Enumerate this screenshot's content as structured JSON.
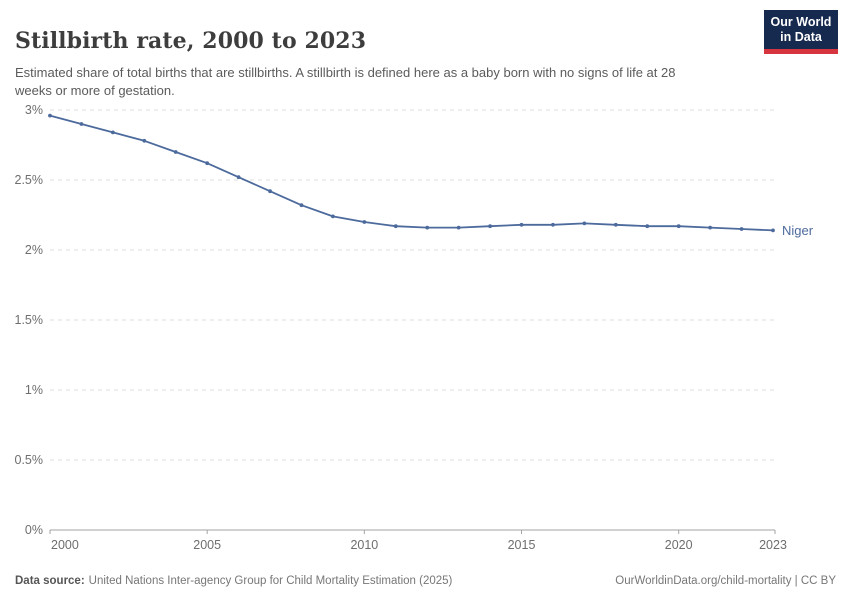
{
  "header": {
    "title": "Stillbirth rate, 2000 to 2023",
    "subtitle": "Estimated share of total births that are stillbirths. A stillbirth is defined here as a baby born with no signs of life at 28 weeks or more of gestation.",
    "logo": {
      "line1": "Our World",
      "line2": "in Data",
      "bg_color": "#16294e",
      "accent_color": "#d6353f"
    }
  },
  "chart_data": {
    "type": "line",
    "title": "Stillbirth rate, 2000 to 2023",
    "xlabel": "",
    "ylabel": "",
    "x": [
      2000,
      2001,
      2002,
      2003,
      2004,
      2005,
      2006,
      2007,
      2008,
      2009,
      2010,
      2011,
      2012,
      2013,
      2014,
      2015,
      2016,
      2017,
      2018,
      2019,
      2020,
      2021,
      2022,
      2023
    ],
    "series": [
      {
        "name": "Niger",
        "color": "#4c6a9c",
        "values": [
          2.96,
          2.9,
          2.84,
          2.78,
          2.7,
          2.62,
          2.52,
          2.42,
          2.32,
          2.24,
          2.2,
          2.17,
          2.16,
          2.16,
          2.17,
          2.18,
          2.18,
          2.19,
          2.18,
          2.17,
          2.17,
          2.16,
          2.15,
          2.14
        ]
      }
    ],
    "xlim": [
      2000,
      2023
    ],
    "ylim": [
      0,
      3
    ],
    "xticks": [
      2000,
      2005,
      2010,
      2015,
      2020,
      2023
    ],
    "xtick_labels": [
      "2000",
      "2005",
      "2010",
      "2015",
      "2020",
      "2023"
    ],
    "yticks": [
      0,
      0.5,
      1,
      1.5,
      2,
      2.5,
      3
    ],
    "ytick_labels": [
      "0%",
      "0.5%",
      "1%",
      "1.5%",
      "2%",
      "2.5%",
      "3%"
    ],
    "grid": "horizontal-dashed",
    "legend": "end-of-line-label",
    "colors": {
      "gridline": "#dedede",
      "axis": "#a3a3a3",
      "tick_label": "#6e6e6e"
    }
  },
  "footer": {
    "datasource_label": "Data source:",
    "datasource_text": "United Nations Inter-agency Group for Child Mortality Estimation (2025)",
    "link_text": "OurWorldinData.org/child-mortality | CC BY"
  }
}
